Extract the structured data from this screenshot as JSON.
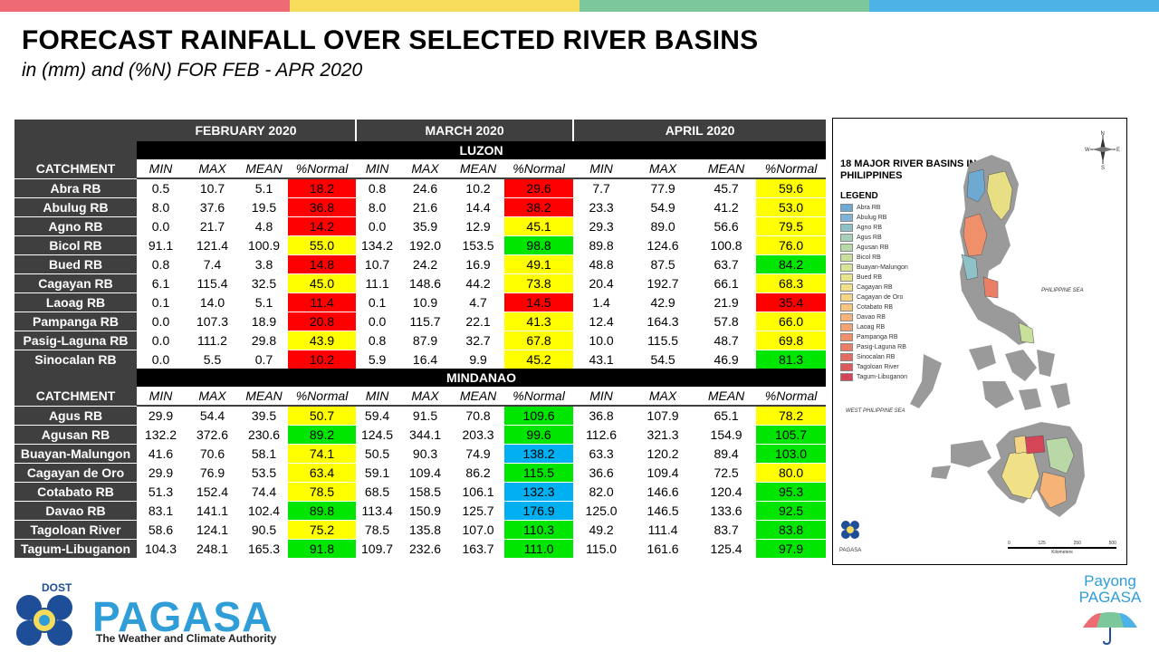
{
  "colors": {
    "bar": [
      "#ef6b73",
      "#f6dc5a",
      "#7cc79c",
      "#4db3e6"
    ],
    "header_dark": "#3f3f3f",
    "red": "#ff0000",
    "yellow": "#ffff00",
    "green": "#00e600",
    "blue": "#00b0f0"
  },
  "title": "FORECAST RAINFALL OVER SELECTED RIVER BASINS",
  "subtitle": "in (mm) and (%N) FOR FEB - APR 2020",
  "table": {
    "months": [
      "FEBRUARY 2020",
      "MARCH 2020",
      "APRIL 2020"
    ],
    "catchment_label": "CATCHMENT",
    "col_headers": [
      "MIN",
      "MAX",
      "MEAN",
      "%Normal"
    ],
    "sections": [
      {
        "name": "LUZON",
        "rows": [
          {
            "name": "Abra RB",
            "vals": [
              "0.5",
              "10.7",
              "5.1",
              "18.2",
              "0.8",
              "24.6",
              "10.2",
              "29.6",
              "7.7",
              "77.9",
              "45.7",
              "59.6"
            ],
            "cls": [
              "red",
              "red",
              "yel"
            ]
          },
          {
            "name": "Abulug RB",
            "vals": [
              "8.0",
              "37.6",
              "19.5",
              "36.8",
              "8.0",
              "21.6",
              "14.4",
              "38.2",
              "23.3",
              "54.9",
              "41.2",
              "53.0"
            ],
            "cls": [
              "red",
              "red",
              "yel"
            ]
          },
          {
            "name": "Agno RB",
            "vals": [
              "0.0",
              "21.7",
              "4.8",
              "14.2",
              "0.0",
              "35.9",
              "12.9",
              "45.1",
              "29.3",
              "89.0",
              "56.6",
              "79.5"
            ],
            "cls": [
              "red",
              "yel",
              "yel"
            ]
          },
          {
            "name": "Bicol RB",
            "vals": [
              "91.1",
              "121.4",
              "100.9",
              "55.0",
              "134.2",
              "192.0",
              "153.5",
              "98.8",
              "89.8",
              "124.6",
              "100.8",
              "76.0"
            ],
            "cls": [
              "yel",
              "grn",
              "yel"
            ]
          },
          {
            "name": "Bued RB",
            "vals": [
              "0.8",
              "7.4",
              "3.8",
              "14.8",
              "10.7",
              "24.2",
              "16.9",
              "49.1",
              "48.8",
              "87.5",
              "63.7",
              "84.2"
            ],
            "cls": [
              "red",
              "yel",
              "grn"
            ]
          },
          {
            "name": "Cagayan RB",
            "vals": [
              "6.1",
              "115.4",
              "32.5",
              "45.0",
              "11.1",
              "148.6",
              "44.2",
              "73.8",
              "20.4",
              "192.7",
              "66.1",
              "68.3"
            ],
            "cls": [
              "yel",
              "yel",
              "yel"
            ]
          },
          {
            "name": "Laoag RB",
            "vals": [
              "0.1",
              "14.0",
              "5.1",
              "11.4",
              "0.1",
              "10.9",
              "4.7",
              "14.5",
              "1.4",
              "42.9",
              "21.9",
              "35.4"
            ],
            "cls": [
              "red",
              "red",
              "red"
            ]
          },
          {
            "name": "Pampanga RB",
            "vals": [
              "0.0",
              "107.3",
              "18.9",
              "20.8",
              "0.0",
              "115.7",
              "22.1",
              "41.3",
              "12.4",
              "164.3",
              "57.8",
              "66.0"
            ],
            "cls": [
              "red",
              "yel",
              "yel"
            ]
          },
          {
            "name": "Pasig-Laguna RB",
            "vals": [
              "0.0",
              "111.2",
              "29.8",
              "43.9",
              "0.8",
              "87.9",
              "32.7",
              "67.8",
              "10.0",
              "115.5",
              "48.7",
              "69.8"
            ],
            "cls": [
              "yel",
              "yel",
              "yel"
            ]
          },
          {
            "name": "Sinocalan RB",
            "vals": [
              "0.0",
              "5.5",
              "0.7",
              "10.2",
              "5.9",
              "16.4",
              "9.9",
              "45.2",
              "43.1",
              "54.5",
              "46.9",
              "81.3"
            ],
            "cls": [
              "red",
              "yel",
              "grn"
            ]
          }
        ]
      },
      {
        "name": "MINDANAO",
        "rows": [
          {
            "name": "Agus RB",
            "vals": [
              "29.9",
              "54.4",
              "39.5",
              "50.7",
              "59.4",
              "91.5",
              "70.8",
              "109.6",
              "36.8",
              "107.9",
              "65.1",
              "78.2"
            ],
            "cls": [
              "yel",
              "grn",
              "yel"
            ]
          },
          {
            "name": "Agusan RB",
            "vals": [
              "132.2",
              "372.6",
              "230.6",
              "89.2",
              "124.5",
              "344.1",
              "203.3",
              "99.6",
              "112.6",
              "321.3",
              "154.9",
              "105.7"
            ],
            "cls": [
              "grn",
              "grn",
              "grn"
            ]
          },
          {
            "name": "Buayan-Malungon",
            "vals": [
              "41.6",
              "70.6",
              "58.1",
              "74.1",
              "50.5",
              "90.3",
              "74.9",
              "138.2",
              "63.3",
              "120.2",
              "89.4",
              "103.0"
            ],
            "cls": [
              "yel",
              "blu",
              "grn"
            ]
          },
          {
            "name": "Cagayan de Oro",
            "vals": [
              "29.9",
              "76.9",
              "53.5",
              "63.4",
              "59.1",
              "109.4",
              "86.2",
              "115.5",
              "36.6",
              "109.4",
              "72.5",
              "80.0"
            ],
            "cls": [
              "yel",
              "grn",
              "yel"
            ]
          },
          {
            "name": "Cotabato RB",
            "vals": [
              "51.3",
              "152.4",
              "74.4",
              "78.5",
              "68.5",
              "158.5",
              "106.1",
              "132.3",
              "82.0",
              "146.6",
              "120.4",
              "95.3"
            ],
            "cls": [
              "yel",
              "blu",
              "grn"
            ]
          },
          {
            "name": "Davao RB",
            "vals": [
              "83.1",
              "141.1",
              "102.4",
              "89.8",
              "113.4",
              "150.9",
              "125.7",
              "176.9",
              "125.0",
              "146.5",
              "133.6",
              "92.5"
            ],
            "cls": [
              "grn",
              "blu",
              "grn"
            ]
          },
          {
            "name": "Tagoloan River",
            "vals": [
              "58.6",
              "124.1",
              "90.5",
              "75.2",
              "78.5",
              "135.8",
              "107.0",
              "110.3",
              "49.2",
              "111.4",
              "83.7",
              "83.8"
            ],
            "cls": [
              "yel",
              "grn",
              "grn"
            ]
          },
          {
            "name": "Tagum-Libuganon",
            "vals": [
              "104.3",
              "248.1",
              "165.3",
              "91.8",
              "109.7",
              "232.6",
              "163.7",
              "111.0",
              "115.0",
              "161.6",
              "125.4",
              "97.9"
            ],
            "cls": [
              "grn",
              "grn",
              "grn"
            ]
          }
        ]
      }
    ]
  },
  "map": {
    "title": "18 MAJOR RIVER BASINS IN THE PHILIPPINES",
    "legend_title": "LEGEND",
    "legend": [
      {
        "label": "Abra RB",
        "color": "#6ea9d2"
      },
      {
        "label": "Abulug RB",
        "color": "#7fb2d6"
      },
      {
        "label": "Agno RB",
        "color": "#8fc1c8"
      },
      {
        "label": "Agus RB",
        "color": "#a8d0b8"
      },
      {
        "label": "Agusan RB",
        "color": "#b9d8a8"
      },
      {
        "label": "Bicol RB",
        "color": "#c9df9c"
      },
      {
        "label": "Buayan-Malungon",
        "color": "#d8e494"
      },
      {
        "label": "Bued RB",
        "color": "#e6e58e"
      },
      {
        "label": "Cagayan RB",
        "color": "#f0e189"
      },
      {
        "label": "Cagayan de Oro",
        "color": "#f4d485"
      },
      {
        "label": "Cotabato RB",
        "color": "#f6c47e"
      },
      {
        "label": "Davao RB",
        "color": "#f5b377"
      },
      {
        "label": "Laoag RB",
        "color": "#f3a271"
      },
      {
        "label": "Pampanga RB",
        "color": "#ef906b"
      },
      {
        "label": "Pasig-Laguna RB",
        "color": "#ea7e66"
      },
      {
        "label": "Sinocalan RB",
        "color": "#e46b61"
      },
      {
        "label": "Tagoloan River",
        "color": "#dd595c"
      },
      {
        "label": "Tagum-Libuganon",
        "color": "#d44657"
      }
    ],
    "sea_east": "PHILIPPINE SEA",
    "sea_west": "WEST PHILIPPINE SEA",
    "logo_label": "PAGASA",
    "compass": [
      "N",
      "W",
      "E",
      "S"
    ],
    "scale_labels": [
      "0",
      "125",
      "250",
      "500"
    ],
    "scale_unit": "Kilometers"
  },
  "footer": {
    "dost": "DOST",
    "pagasa": "PAGASA",
    "tagline": "The Weather and Climate Authority",
    "payong_line1": "Payong",
    "payong_line2": "PAGASA"
  }
}
